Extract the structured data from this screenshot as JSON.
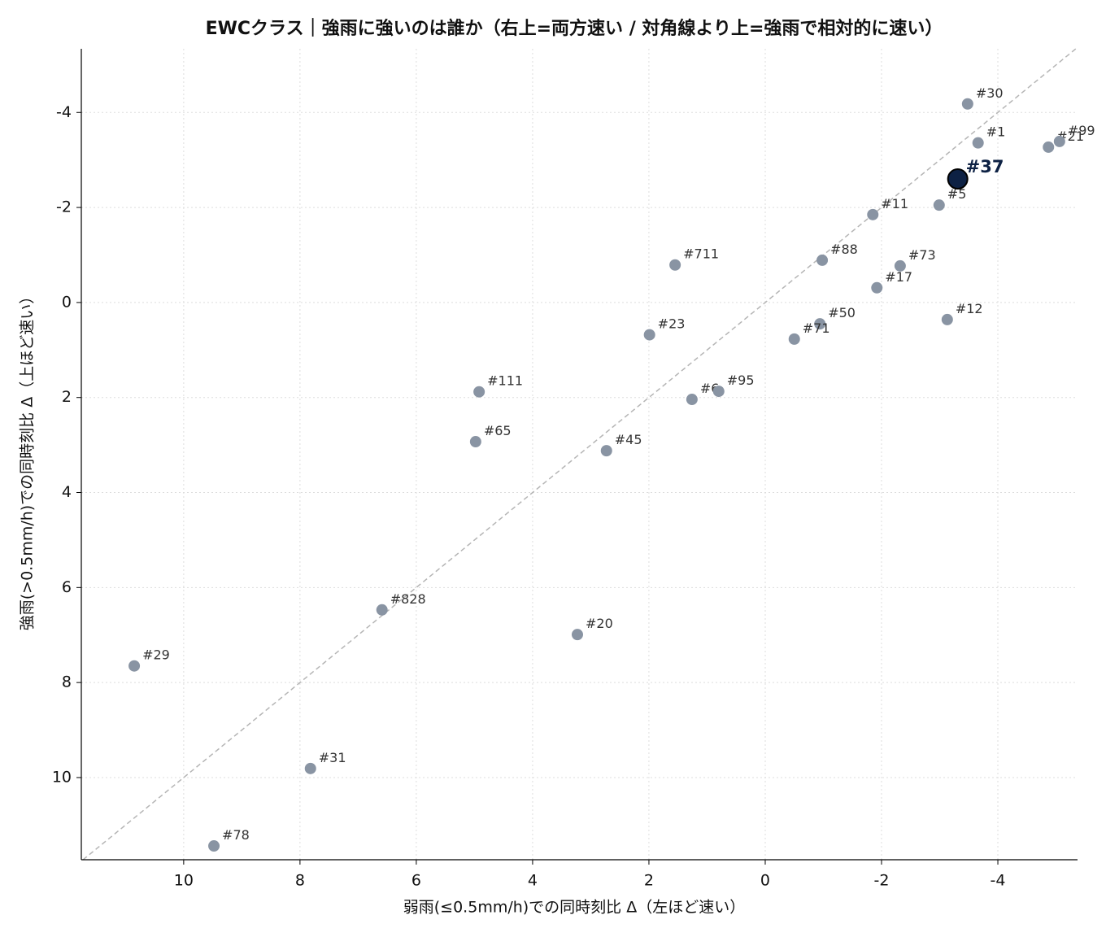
{
  "chart_data": {
    "type": "scatter",
    "title": "EWCクラス｜強雨に強いのは誰か（右上=両方速い / 対角線より上=強雨で相対的に速い）",
    "x_label": "弱雨(≤0.5mm/h)での同時刻比 Δ（左ほど速い）",
    "y_label": "強雨(>0.5mm/h)での同時刻比 Δ（上ほど速い）",
    "xlim": [
      11.76,
      -5.37
    ],
    "ylim": [
      11.73,
      -5.34
    ],
    "xticks": [
      10,
      8,
      6,
      4,
      2,
      0,
      -2,
      -4
    ],
    "yticks": [
      -4,
      -2,
      0,
      2,
      4,
      6,
      8,
      10
    ],
    "grid": true,
    "diagonal": true,
    "color": "#8994a3",
    "highlight_color": "#0d2144",
    "points": [
      {
        "label": "#30",
        "x": -3.48,
        "y": -4.18
      },
      {
        "label": "#1",
        "x": -3.66,
        "y": -3.36
      },
      {
        "label": "#21",
        "x": -4.87,
        "y": -3.27
      },
      {
        "label": "#99",
        "x": -5.06,
        "y": -3.39
      },
      {
        "label": "#37",
        "x": -3.31,
        "y": -2.6,
        "highlight": true
      },
      {
        "label": "#5",
        "x": -2.99,
        "y": -2.05
      },
      {
        "label": "#11",
        "x": -1.85,
        "y": -1.85
      },
      {
        "label": "#711",
        "x": 1.55,
        "y": -0.79
      },
      {
        "label": "#88",
        "x": -0.98,
        "y": -0.89
      },
      {
        "label": "#73",
        "x": -2.32,
        "y": -0.77
      },
      {
        "label": "#17",
        "x": -1.92,
        "y": -0.31
      },
      {
        "label": "#12",
        "x": -3.13,
        "y": 0.36
      },
      {
        "label": "#50",
        "x": -0.94,
        "y": 0.45
      },
      {
        "label": "#71",
        "x": -0.5,
        "y": 0.77
      },
      {
        "label": "#23",
        "x": 1.99,
        "y": 0.68
      },
      {
        "label": "#111",
        "x": 4.92,
        "y": 1.88
      },
      {
        "label": "#6",
        "x": 1.26,
        "y": 2.04
      },
      {
        "label": "#95",
        "x": 0.8,
        "y": 1.87
      },
      {
        "label": "#65",
        "x": 4.98,
        "y": 2.93
      },
      {
        "label": "#45",
        "x": 2.73,
        "y": 3.12
      },
      {
        "label": "#828",
        "x": 6.59,
        "y": 6.47
      },
      {
        "label": "#20",
        "x": 3.23,
        "y": 6.99
      },
      {
        "label": "#29",
        "x": 10.85,
        "y": 7.65
      },
      {
        "label": "#31",
        "x": 7.82,
        "y": 9.81
      },
      {
        "label": "#78",
        "x": 9.48,
        "y": 11.44
      }
    ]
  }
}
